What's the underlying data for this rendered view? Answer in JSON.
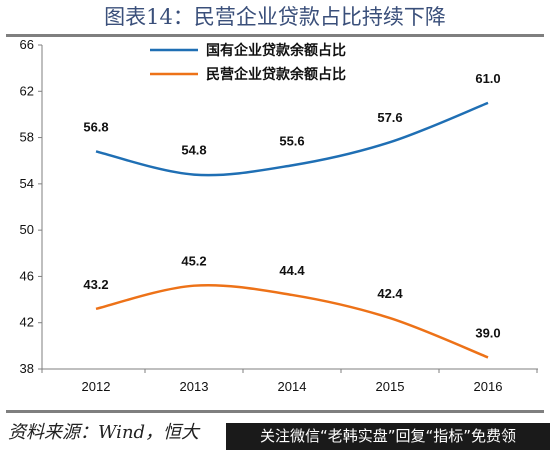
{
  "header": {
    "title": "图表14：民营企业贷款占比持续下降"
  },
  "footer": {
    "source": "资料来源：Wind，恒大",
    "watermark": "关注微信“老韩实盘”回复“指标”免费领"
  },
  "chart_data": {
    "type": "line",
    "title": "民营企业贷款占比持续下降",
    "x": [
      2012,
      2013,
      2014,
      2015,
      2016
    ],
    "series": [
      {
        "name": "国有企业贷款余额占比",
        "values": [
          56.8,
          54.8,
          55.6,
          57.6,
          61.0
        ],
        "labels": [
          "56.8",
          "54.8",
          "55.6",
          "57.6",
          "61.0"
        ],
        "color": "#1f6fb4"
      },
      {
        "name": "民营企业贷款余额占比",
        "values": [
          43.2,
          45.2,
          44.4,
          42.4,
          39.0
        ],
        "labels": [
          "43.2",
          "45.2",
          "44.4",
          "42.4",
          "39.0"
        ],
        "color": "#ed7218"
      }
    ],
    "yticks": [
      "38",
      "42",
      "46",
      "50",
      "54",
      "58",
      "62",
      "66"
    ],
    "xticks": [
      "2012",
      "2013",
      "2014",
      "2015",
      "2016"
    ],
    "ylim": [
      38,
      66
    ],
    "xlabel": "",
    "ylabel": "",
    "grid": false,
    "legend_position": "top-center",
    "smooth": true
  }
}
